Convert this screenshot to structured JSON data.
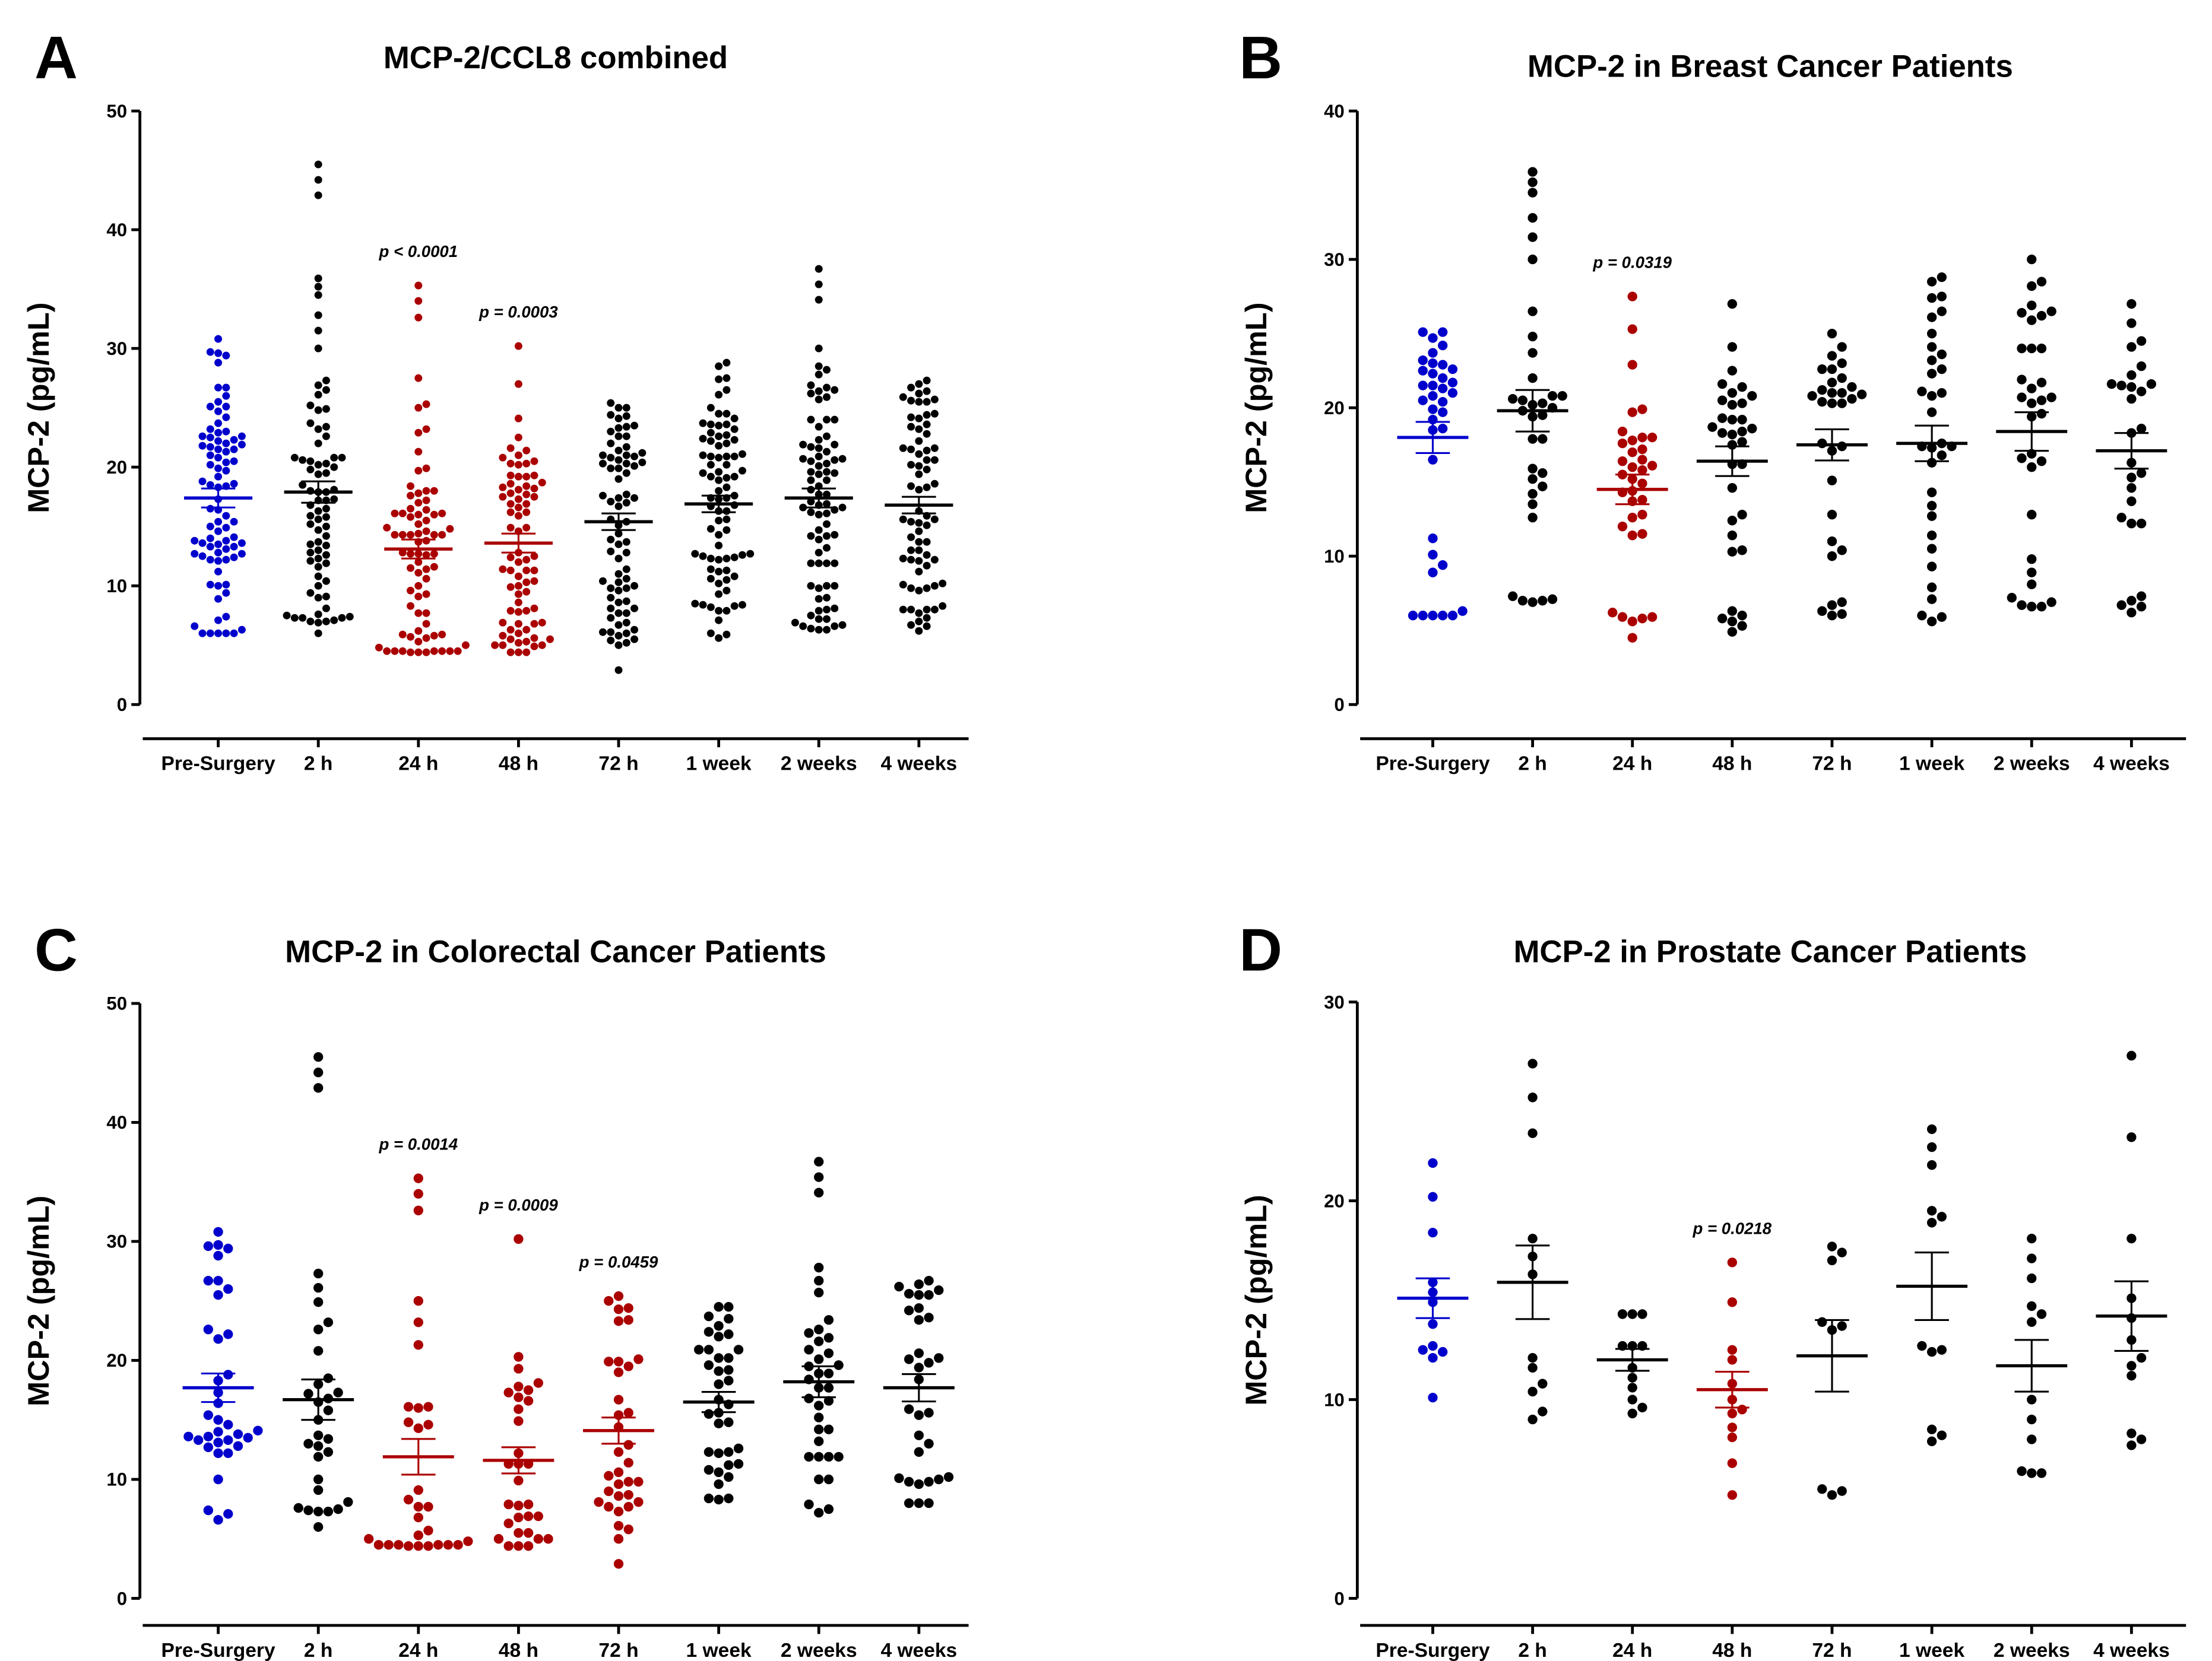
{
  "chart_data": [
    {
      "id": "A",
      "type": "scatter",
      "panel_letter": "A",
      "title": "MCP-2/CCL8 combined",
      "ylabel": "MCP-2 (pg/mL)",
      "ylim": [
        0,
        50
      ],
      "yticks": [
        0,
        10,
        20,
        30,
        40,
        50
      ],
      "categories": [
        "Pre-Surgery",
        "2 h",
        "24 h",
        "48 h",
        "72 h",
        "1 week",
        "2 weeks",
        "4 weeks"
      ],
      "combined_from": [
        "B",
        "C",
        "D"
      ],
      "means": [
        17.4,
        17.9,
        13.1,
        13.6,
        15.4,
        16.9,
        17.4,
        16.8
      ],
      "sem": [
        0.8,
        0.9,
        0.8,
        0.8,
        0.7,
        0.7,
        0.8,
        0.7
      ],
      "colors": [
        "#0000cc",
        "#000000",
        "#aa0000",
        "#aa0000",
        "#000000",
        "#000000",
        "#000000",
        "#000000"
      ],
      "annotations": [
        {
          "category": "24 h",
          "text": "p < 0.0001"
        },
        {
          "category": "48 h",
          "text": "p = 0.0003"
        }
      ]
    },
    {
      "id": "B",
      "type": "scatter",
      "panel_letter": "B",
      "title": "MCP-2 in Breast Cancer Patients",
      "ylabel": "MCP-2 (pg/mL)",
      "ylim": [
        0,
        40
      ],
      "yticks": [
        0,
        10,
        20,
        30,
        40
      ],
      "categories": [
        "Pre-Surgery",
        "2 h",
        "24 h",
        "48 h",
        "72 h",
        "1 week",
        "2 weeks",
        "4 weeks"
      ],
      "means": [
        18.0,
        19.8,
        14.5,
        16.4,
        17.5,
        17.6,
        18.4,
        17.1
      ],
      "sem": [
        1.05,
        1.4,
        1.0,
        1.0,
        1.05,
        1.2,
        1.3,
        1.2
      ],
      "colors": [
        "#0000cc",
        "#000000",
        "#aa0000",
        "#000000",
        "#000000",
        "#000000",
        "#000000",
        "#000000"
      ],
      "values": [
        [
          25.1,
          25.1,
          24.7,
          24.2,
          23.7,
          23.2,
          23.0,
          22.9,
          22.6,
          22.5,
          22.3,
          22.0,
          21.7,
          21.5,
          21.5,
          21.3,
          21.0,
          20.8,
          20.5,
          20.4,
          19.9,
          19.7,
          19.2,
          18.6,
          18.5,
          16.5,
          11.2,
          10.1,
          9.4,
          8.9,
          6.3,
          6.0,
          6.0,
          6.0,
          6.0,
          6.0
        ],
        [
          35.9,
          35.2,
          34.5,
          32.8,
          31.5,
          30.0,
          26.5,
          24.8,
          23.7,
          22.0,
          20.8,
          20.8,
          20.5,
          20.6,
          20.3,
          20.2,
          20.0,
          19.8,
          19.5,
          19.4,
          17.9,
          17.9,
          15.9,
          15.6,
          15.2,
          14.7,
          14.2,
          13.5,
          12.6,
          7.3,
          7.1,
          7.0,
          7.0,
          6.9
        ],
        [
          27.5,
          25.3,
          22.9,
          19.9,
          19.7,
          18.4,
          18.0,
          18.0,
          17.8,
          17.6,
          17.2,
          17.0,
          16.5,
          16.4,
          16.1,
          16.0,
          15.8,
          15.5,
          15.2,
          14.9,
          14.4,
          14.3,
          13.8,
          13.7,
          12.8,
          12.6,
          12.0,
          11.5,
          11.4,
          6.2,
          5.9,
          5.9,
          5.8,
          5.6,
          4.5
        ],
        [
          27.0,
          24.1,
          22.5,
          21.6,
          21.4,
          21.0,
          20.8,
          20.5,
          20.3,
          20.2,
          19.3,
          19.2,
          19.2,
          18.7,
          18.6,
          18.4,
          18.3,
          18.2,
          17.7,
          17.5,
          16.2,
          16.2,
          14.6,
          12.8,
          12.4,
          11.4,
          10.4,
          10.3,
          6.3,
          6.0,
          5.8,
          5.6,
          5.3,
          4.9
        ],
        [
          25.0,
          24.1,
          23.5,
          23.0,
          22.6,
          22.6,
          22.0,
          21.7,
          21.4,
          21.2,
          21.0,
          21.0,
          20.9,
          20.8,
          20.6,
          20.4,
          20.3,
          20.3,
          17.6,
          17.4,
          17.1,
          15.1,
          12.8,
          11.0,
          10.4,
          10.0,
          6.9,
          6.7,
          6.3,
          6.1,
          6.0
        ],
        [
          28.8,
          28.5,
          27.5,
          27.4,
          26.5,
          26.1,
          25.0,
          24.1,
          23.6,
          23.2,
          22.6,
          22.3,
          21.1,
          21.0,
          20.8,
          19.7,
          17.6,
          17.4,
          17.3,
          17.4,
          16.8,
          16.3,
          14.3,
          13.4,
          12.7,
          11.4,
          10.5,
          9.3,
          7.9,
          7.1,
          6.0,
          5.9,
          5.6
        ],
        [
          30.0,
          28.5,
          28.2,
          26.9,
          26.5,
          26.2,
          26.4,
          25.9,
          24.0,
          24.0,
          24.0,
          21.9,
          21.7,
          21.3,
          20.7,
          20.7,
          20.5,
          20.3,
          19.6,
          19.4,
          16.9,
          16.6,
          16.4,
          16.0,
          12.8,
          9.8,
          8.9,
          8.1,
          7.2,
          6.9,
          6.7,
          6.6,
          6.6
        ],
        [
          27.0,
          25.7,
          24.5,
          24.1,
          22.8,
          22.2,
          21.6,
          21.6,
          21.5,
          21.4,
          21.1,
          20.6,
          18.6,
          18.3,
          16.3,
          15.6,
          15.3,
          14.6,
          13.7,
          12.6,
          12.2,
          12.2,
          7.3,
          7.0,
          6.7,
          6.6,
          6.2
        ]
      ],
      "annotations": [
        {
          "category": "24 h",
          "text": "p = 0.0319"
        }
      ]
    },
    {
      "id": "C",
      "type": "scatter",
      "panel_letter": "C",
      "title": "MCP-2 in Colorectal Cancer Patients",
      "ylabel": "MCP-2 (pg/mL)",
      "ylim": [
        0,
        50
      ],
      "yticks": [
        0,
        10,
        20,
        30,
        40,
        50
      ],
      "categories": [
        "Pre-Surgery",
        "2 h",
        "24 h",
        "48 h",
        "72 h",
        "1 week",
        "2 weeks",
        "4 weeks"
      ],
      "means": [
        17.7,
        16.7,
        11.9,
        11.6,
        14.1,
        16.5,
        18.2,
        17.7
      ],
      "sem": [
        1.2,
        1.7,
        1.5,
        1.1,
        1.1,
        0.85,
        1.3,
        1.15
      ],
      "colors": [
        "#0000cc",
        "#000000",
        "#aa0000",
        "#aa0000",
        "#aa0000",
        "#000000",
        "#000000",
        "#000000"
      ],
      "values": [
        [
          30.8,
          29.7,
          29.6,
          29.4,
          28.8,
          26.7,
          26.7,
          26.0,
          25.5,
          22.6,
          22.2,
          21.8,
          18.8,
          18.3,
          17.3,
          16.4,
          15.4,
          15.0,
          14.6,
          14.1,
          14.0,
          13.8,
          13.6,
          13.6,
          13.5,
          13.3,
          13.3,
          13.1,
          12.8,
          12.7,
          12.2,
          12.2,
          10.0,
          7.4,
          7.1,
          6.6
        ],
        [
          45.5,
          44.2,
          42.9,
          27.3,
          26.1,
          24.9,
          23.2,
          22.6,
          20.8,
          18.5,
          18.0,
          17.3,
          17.2,
          16.8,
          16.5,
          15.8,
          15.0,
          13.7,
          13.4,
          13.0,
          12.8,
          12.3,
          11.9,
          10.0,
          9.1,
          8.1,
          7.6,
          7.5,
          7.4,
          7.3,
          7.3,
          6.0
        ],
        [
          35.3,
          34.0,
          32.6,
          25.0,
          23.2,
          21.3,
          16.1,
          16.1,
          16.0,
          14.8,
          14.6,
          14.3,
          9.1,
          8.3,
          7.7,
          7.7,
          6.8,
          5.7,
          5.3,
          5.0,
          4.8,
          4.5,
          4.5,
          4.5,
          4.4,
          4.5,
          4.5,
          4.5,
          4.4,
          4.4
        ],
        [
          30.2,
          20.3,
          19.3,
          18.1,
          17.5,
          17.8,
          17.3,
          16.9,
          16.6,
          15.9,
          14.9,
          12.2,
          11.3,
          11.3,
          11.3,
          9.9,
          7.9,
          7.9,
          7.8,
          6.8,
          6.9,
          6.3,
          6.9,
          5.5,
          5.5,
          5.0,
          5.0,
          5.0,
          4.4,
          4.4,
          4.4
        ],
        [
          25.4,
          25.0,
          24.4,
          24.3,
          23.4,
          23.3,
          20.1,
          19.9,
          19.9,
          19.0,
          19.5,
          16.7,
          15.6,
          15.4,
          14.4,
          12.9,
          12.3,
          11.4,
          10.6,
          10.3,
          9.8,
          9.8,
          9.6,
          9.0,
          8.7,
          8.6,
          8.1,
          8.1,
          7.7,
          7.7,
          7.3,
          6.1,
          5.8,
          5.0,
          2.9
        ],
        [
          24.5,
          24.5,
          23.5,
          23.7,
          22.9,
          22.4,
          22.2,
          22.0,
          20.9,
          20.9,
          20.2,
          20.2,
          20.9,
          19.2,
          19.6,
          19.1,
          18.3,
          18.0,
          16.7,
          16.3,
          15.6,
          15.5,
          14.8,
          14.7,
          12.6,
          12.3,
          12.2,
          12.3,
          11.3,
          10.8,
          11.2,
          10.6,
          10.2,
          9.6,
          8.4,
          8.4,
          8.3
        ],
        [
          36.7,
          35.4,
          34.1,
          27.8,
          26.7,
          25.7,
          23.4,
          22.6,
          22.3,
          21.9,
          21.6,
          20.6,
          20.9,
          20.1,
          19.6,
          19.5,
          18.9,
          18.9,
          18.4,
          17.7,
          17.7,
          16.8,
          16.2,
          16.6,
          15.2,
          14.2,
          14.2,
          13.2,
          11.9,
          11.9,
          11.9,
          11.9,
          10.0,
          10.0,
          7.9,
          7.2,
          7.5
        ],
        [
          26.7,
          26.4,
          26.2,
          25.9,
          25.5,
          25.6,
          25.5,
          24.4,
          24.2,
          23.6,
          23.4,
          20.6,
          19.8,
          20.1,
          20.2,
          19.4,
          18.4,
          15.9,
          15.4,
          15.6,
          13.7,
          13.0,
          12.3,
          10.1,
          10.0,
          9.8,
          9.8,
          9.6,
          10.2,
          8.0,
          8.0,
          8.0
        ]
      ],
      "annotations": [
        {
          "category": "24 h",
          "text": "p = 0.0014"
        },
        {
          "category": "48 h",
          "text": "p = 0.0009"
        },
        {
          "category": "72 h",
          "text": "p = 0.0459"
        }
      ]
    },
    {
      "id": "D",
      "type": "scatter",
      "panel_letter": "D",
      "title": "MCP-2 in Prostate Cancer Patients",
      "ylabel": "MCP-2 (pg/mL)",
      "ylim": [
        0,
        30
      ],
      "yticks": [
        0,
        10,
        20,
        30
      ],
      "categories": [
        "Pre-Surgery",
        "2 h",
        "24 h",
        "48 h",
        "72 h",
        "1 week",
        "2 weeks",
        "4 weeks"
      ],
      "means": [
        15.1,
        15.9,
        12.0,
        10.5,
        12.2,
        15.7,
        11.7,
        14.2
      ],
      "sem": [
        1.0,
        1.85,
        0.55,
        0.9,
        1.8,
        1.7,
        1.3,
        1.75
      ],
      "colors": [
        "#0000cc",
        "#000000",
        "#000000",
        "#aa0000",
        "#000000",
        "#000000",
        "#000000",
        "#000000"
      ],
      "values": [
        [
          21.9,
          20.2,
          18.4,
          15.9,
          15.4,
          14.9,
          13.8,
          12.7,
          12.5,
          12.4,
          12.1,
          10.1
        ],
        [
          26.9,
          25.2,
          23.4,
          18.1,
          17.2,
          16.3,
          12.1,
          11.6,
          10.8,
          10.4,
          9.4,
          9.0
        ],
        [
          14.3,
          14.3,
          14.3,
          12.7,
          12.7,
          12.7,
          11.6,
          11.1,
          10.6,
          10.0,
          9.6,
          9.3
        ],
        [
          16.9,
          14.9,
          12.5,
          12.0,
          10.8,
          10.0,
          9.5,
          9.3,
          8.6,
          8.1,
          6.8,
          5.2
        ],
        [
          17.7,
          17.4,
          17.0,
          13.9,
          13.7,
          13.5,
          5.5,
          5.4,
          5.2
        ],
        [
          23.6,
          22.7,
          21.8,
          19.5,
          19.2,
          18.9,
          12.7,
          12.5,
          12.4,
          8.5,
          8.2,
          7.9
        ],
        [
          18.1,
          17.1,
          16.1,
          14.7,
          14.3,
          13.9,
          10.0,
          9.0,
          8.0,
          6.4,
          6.3,
          6.3
        ],
        [
          27.3,
          23.2,
          18.1,
          15.1,
          14.1,
          13.0,
          12.1,
          11.7,
          11.2,
          8.3,
          8.0,
          7.7
        ]
      ],
      "annotations": [
        {
          "category": "48 h",
          "text": "p = 0.0218"
        }
      ]
    }
  ]
}
